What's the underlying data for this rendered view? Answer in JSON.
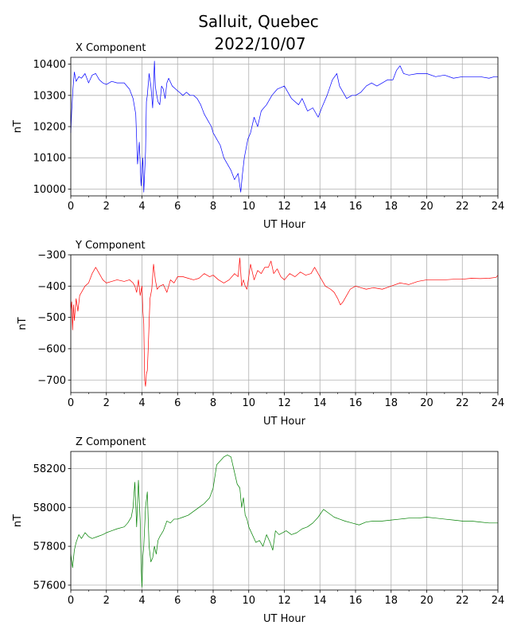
{
  "figure": {
    "title_line1": "Salluit, Quebec",
    "title_line2": "2022/10/07"
  },
  "chart_data": [
    {
      "type": "line",
      "title": "X Component",
      "xlabel": "UT Hour",
      "ylabel": "nT",
      "color": "#0000ff",
      "xlim": [
        0,
        24
      ],
      "ylim": [
        9978,
        10422
      ],
      "xticks": [
        0,
        2,
        4,
        6,
        8,
        10,
        12,
        14,
        16,
        18,
        20,
        22,
        24
      ],
      "yticks": [
        10000,
        10100,
        10200,
        10300,
        10400
      ],
      "grid": true,
      "series": [
        {
          "x": [
            0,
            0.05,
            0.12,
            0.2,
            0.3,
            0.45,
            0.6,
            0.8,
            1.0,
            1.2,
            1.4,
            1.6,
            1.8,
            2.0,
            2.3,
            2.6,
            3.0,
            3.3,
            3.5,
            3.65,
            3.75,
            3.85,
            3.95,
            4.0,
            4.05,
            4.1,
            4.15,
            4.2,
            4.25,
            4.3,
            4.4,
            4.5,
            4.6,
            4.7,
            4.75,
            4.8,
            4.9,
            5.0,
            5.1,
            5.2,
            5.3,
            5.4,
            5.5,
            5.7,
            5.9,
            6.1,
            6.3,
            6.5,
            6.7,
            6.9,
            7.1,
            7.3,
            7.5,
            7.7,
            7.9,
            8.0,
            8.2,
            8.4,
            8.6,
            8.8,
            9.0,
            9.2,
            9.4,
            9.55,
            9.65,
            9.75,
            9.85,
            9.95,
            10.1,
            10.3,
            10.5,
            10.7,
            11.0,
            11.3,
            11.6,
            12.0,
            12.4,
            12.8,
            13.0,
            13.3,
            13.6,
            13.9,
            14.1,
            14.4,
            14.7,
            14.95,
            15.1,
            15.3,
            15.5,
            15.8,
            16.0,
            16.3,
            16.6,
            16.9,
            17.2,
            17.5,
            17.8,
            18.1,
            18.3,
            18.5,
            18.7,
            19.0,
            19.5,
            20.0,
            20.5,
            21.0,
            21.5,
            22.0,
            22.5,
            23.0,
            23.5,
            23.8,
            24
          ],
          "values": [
            10180,
            10250,
            10320,
            10375,
            10345,
            10360,
            10355,
            10370,
            10340,
            10365,
            10370,
            10350,
            10340,
            10335,
            10345,
            10340,
            10340,
            10320,
            10290,
            10240,
            10080,
            10150,
            10010,
            10060,
            10100,
            9990,
            10050,
            10120,
            10280,
            10300,
            10370,
            10330,
            10260,
            10410,
            10330,
            10310,
            10280,
            10270,
            10330,
            10320,
            10290,
            10340,
            10355,
            10330,
            10320,
            10310,
            10300,
            10310,
            10300,
            10300,
            10290,
            10270,
            10240,
            10220,
            10200,
            10180,
            10160,
            10140,
            10100,
            10080,
            10060,
            10030,
            10050,
            9990,
            10050,
            10100,
            10130,
            10160,
            10180,
            10230,
            10200,
            10250,
            10270,
            10300,
            10320,
            10330,
            10290,
            10270,
            10290,
            10250,
            10260,
            10230,
            10260,
            10300,
            10350,
            10370,
            10330,
            10310,
            10290,
            10300,
            10300,
            10310,
            10330,
            10340,
            10330,
            10340,
            10350,
            10350,
            10380,
            10395,
            10370,
            10365,
            10370,
            10370,
            10360,
            10365,
            10355,
            10360,
            10360,
            10360,
            10355,
            10360,
            10360
          ]
        }
      ]
    },
    {
      "type": "line",
      "title": "Y Component",
      "xlabel": "UT Hour",
      "ylabel": "nT",
      "color": "#ff0000",
      "xlim": [
        0,
        24
      ],
      "ylim": [
        -740,
        -300
      ],
      "xticks": [
        0,
        2,
        4,
        6,
        8,
        10,
        12,
        14,
        16,
        18,
        20,
        22,
        24
      ],
      "yticks": [
        -300,
        -400,
        -500,
        -600,
        -700
      ],
      "grid": true,
      "series": [
        {
          "x": [
            0,
            0.05,
            0.1,
            0.15,
            0.2,
            0.3,
            0.4,
            0.5,
            0.6,
            0.8,
            1.0,
            1.2,
            1.4,
            1.6,
            1.8,
            2.0,
            2.3,
            2.6,
            3.0,
            3.3,
            3.5,
            3.6,
            3.7,
            3.8,
            3.9,
            4.0,
            4.05,
            4.1,
            4.15,
            4.2,
            4.25,
            4.3,
            4.35,
            4.45,
            4.55,
            4.65,
            4.75,
            4.85,
            5.0,
            5.2,
            5.4,
            5.6,
            5.8,
            6.0,
            6.3,
            6.6,
            6.9,
            7.2,
            7.5,
            7.8,
            8.0,
            8.3,
            8.6,
            8.9,
            9.2,
            9.4,
            9.5,
            9.6,
            9.7,
            9.8,
            9.9,
            10.1,
            10.3,
            10.5,
            10.7,
            10.9,
            11.1,
            11.25,
            11.4,
            11.6,
            11.8,
            12.0,
            12.3,
            12.6,
            12.9,
            13.2,
            13.5,
            13.7,
            14.0,
            14.3,
            14.6,
            14.8,
            15.0,
            15.15,
            15.3,
            15.5,
            15.7,
            16.0,
            16.3,
            16.6,
            17.0,
            17.5,
            18.0,
            18.5,
            19.0,
            19.5,
            20.0,
            20.5,
            21.0,
            21.5,
            22.0,
            22.5,
            23.0,
            23.5,
            23.9,
            24
          ],
          "values": [
            -480,
            -450,
            -540,
            -460,
            -510,
            -440,
            -480,
            -430,
            -420,
            -400,
            -390,
            -360,
            -340,
            -360,
            -380,
            -390,
            -385,
            -380,
            -385,
            -380,
            -390,
            -400,
            -420,
            -380,
            -430,
            -400,
            -480,
            -520,
            -700,
            -720,
            -680,
            -670,
            -600,
            -440,
            -410,
            -330,
            -380,
            -410,
            -400,
            -395,
            -420,
            -380,
            -390,
            -370,
            -370,
            -375,
            -380,
            -375,
            -360,
            -370,
            -365,
            -380,
            -390,
            -380,
            -360,
            -370,
            -310,
            -400,
            -380,
            -400,
            -410,
            -330,
            -380,
            -350,
            -360,
            -340,
            -340,
            -320,
            -360,
            -345,
            -370,
            -380,
            -360,
            -370,
            -355,
            -365,
            -360,
            -340,
            -370,
            -400,
            -410,
            -420,
            -440,
            -460,
            -450,
            -430,
            -410,
            -400,
            -405,
            -410,
            -405,
            -410,
            -400,
            -390,
            -395,
            -385,
            -380,
            -380,
            -380,
            -378,
            -378,
            -375,
            -376,
            -375,
            -372,
            -365
          ]
        }
      ]
    },
    {
      "type": "line",
      "title": "Z Component",
      "xlabel": "UT Hour",
      "ylabel": "nT",
      "color": "#008000",
      "xlim": [
        0,
        24
      ],
      "ylim": [
        57575,
        58288
      ],
      "xticks": [
        0,
        2,
        4,
        6,
        8,
        10,
        12,
        14,
        16,
        18,
        20,
        22,
        24
      ],
      "yticks": [
        57600,
        57800,
        58000,
        58200
      ],
      "grid": true,
      "series": [
        {
          "x": [
            0,
            0.1,
            0.2,
            0.3,
            0.45,
            0.6,
            0.8,
            1.0,
            1.2,
            1.5,
            1.8,
            2.0,
            2.3,
            2.6,
            3.0,
            3.2,
            3.4,
            3.5,
            3.6,
            3.7,
            3.8,
            3.9,
            3.95,
            4.0,
            4.05,
            4.1,
            4.2,
            4.3,
            4.4,
            4.5,
            4.6,
            4.7,
            4.8,
            4.9,
            5.0,
            5.2,
            5.4,
            5.6,
            5.8,
            6.0,
            6.3,
            6.6,
            6.9,
            7.2,
            7.5,
            7.8,
            8.0,
            8.2,
            8.4,
            8.6,
            8.8,
            9.0,
            9.2,
            9.35,
            9.5,
            9.6,
            9.7,
            9.8,
            9.9,
            10.0,
            10.2,
            10.4,
            10.6,
            10.8,
            11.0,
            11.2,
            11.35,
            11.5,
            11.7,
            11.9,
            12.1,
            12.4,
            12.7,
            13.0,
            13.3,
            13.6,
            13.9,
            14.2,
            14.5,
            14.8,
            15.1,
            15.4,
            15.8,
            16.2,
            16.6,
            17.0,
            17.5,
            18.0,
            18.5,
            19.0,
            19.5,
            20.0,
            20.5,
            21.0,
            21.5,
            22.0,
            22.5,
            23.0,
            23.5,
            24
          ],
          "values": [
            57760,
            57690,
            57780,
            57820,
            57860,
            57840,
            57870,
            57850,
            57840,
            57850,
            57860,
            57870,
            57880,
            57890,
            57900,
            57920,
            57950,
            58000,
            58130,
            57900,
            58140,
            57930,
            57700,
            57590,
            57750,
            57800,
            58000,
            58080,
            57800,
            57720,
            57740,
            57800,
            57760,
            57830,
            57850,
            57880,
            57930,
            57920,
            57940,
            57940,
            57950,
            57960,
            57980,
            58000,
            58020,
            58050,
            58100,
            58220,
            58240,
            58260,
            58270,
            58260,
            58180,
            58120,
            58100,
            58000,
            58050,
            57960,
            57940,
            57900,
            57860,
            57820,
            57830,
            57800,
            57860,
            57820,
            57780,
            57880,
            57860,
            57870,
            57880,
            57860,
            57870,
            57890,
            57900,
            57920,
            57950,
            57990,
            57970,
            57950,
            57940,
            57930,
            57920,
            57910,
            57925,
            57930,
            57930,
            57935,
            57940,
            57945,
            57945,
            57950,
            57945,
            57940,
            57935,
            57930,
            57930,
            57925,
            57920,
            57920
          ]
        }
      ]
    }
  ]
}
